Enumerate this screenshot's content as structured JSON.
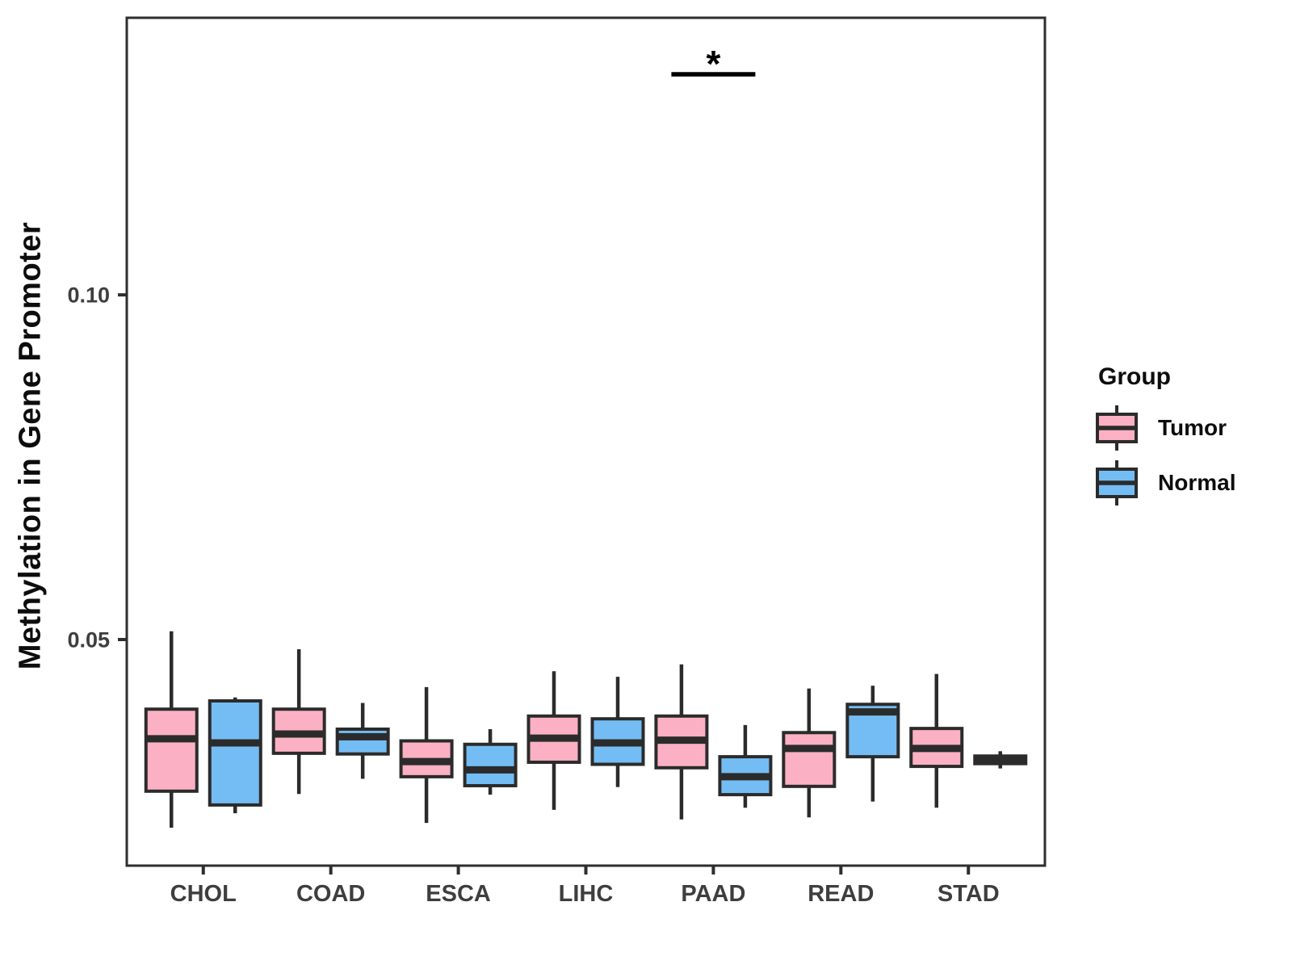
{
  "figure": {
    "y_axis_title": "Methylation in Gene Promoter",
    "legend": {
      "title": "Group",
      "entries": [
        {
          "label": "Tumor",
          "color": "#FBB1C3"
        },
        {
          "label": "Normal",
          "color": "#74BDF4"
        }
      ]
    }
  },
  "chart_data": {
    "type": "boxplot",
    "title": "",
    "xlabel": "",
    "ylabel": "Methylation in Gene Promoter",
    "categories": [
      "CHOL",
      "COAD",
      "ESCA",
      "LIHC",
      "PAAD",
      "READ",
      "STAD"
    ],
    "ylim": [
      0.0172,
      0.1402
    ],
    "y_ticks": [
      0.05,
      0.1
    ],
    "y_tick_labels": [
      "0.05",
      "0.10"
    ],
    "grid": false,
    "legend_position": "right",
    "legend_title": "Group",
    "series": [
      {
        "name": "Tumor",
        "color": "#FBB1C3",
        "boxes": [
          {
            "category": "CHOL",
            "whislo": 0.0227,
            "q1": 0.028,
            "med": 0.0356,
            "q3": 0.0399,
            "whishi": 0.0512
          },
          {
            "category": "COAD",
            "whislo": 0.0276,
            "q1": 0.0335,
            "med": 0.0363,
            "q3": 0.0399,
            "whishi": 0.0486
          },
          {
            "category": "ESCA",
            "whislo": 0.0234,
            "q1": 0.0301,
            "med": 0.0323,
            "q3": 0.0353,
            "whishi": 0.0431
          },
          {
            "category": "LIHC",
            "whislo": 0.0253,
            "q1": 0.0322,
            "med": 0.0357,
            "q3": 0.0389,
            "whishi": 0.0454
          },
          {
            "category": "PAAD",
            "whislo": 0.0239,
            "q1": 0.0314,
            "med": 0.0354,
            "q3": 0.0389,
            "whishi": 0.0464
          },
          {
            "category": "READ",
            "whislo": 0.0242,
            "q1": 0.0287,
            "med": 0.0342,
            "q3": 0.0365,
            "whishi": 0.0429
          },
          {
            "category": "STAD",
            "whislo": 0.0256,
            "q1": 0.0316,
            "med": 0.0342,
            "q3": 0.0371,
            "whishi": 0.045
          }
        ]
      },
      {
        "name": "Normal",
        "color": "#74BDF4",
        "boxes": [
          {
            "category": "CHOL",
            "whislo": 0.0248,
            "q1": 0.026,
            "med": 0.035,
            "q3": 0.0411,
            "whishi": 0.0416
          },
          {
            "category": "COAD",
            "whislo": 0.0298,
            "q1": 0.0334,
            "med": 0.0359,
            "q3": 0.037,
            "whishi": 0.0408
          },
          {
            "category": "ESCA",
            "whislo": 0.0275,
            "q1": 0.0288,
            "med": 0.0311,
            "q3": 0.0348,
            "whishi": 0.037
          },
          {
            "category": "LIHC",
            "whislo": 0.0286,
            "q1": 0.0319,
            "med": 0.035,
            "q3": 0.0385,
            "whishi": 0.0446
          },
          {
            "category": "PAAD",
            "whislo": 0.0256,
            "q1": 0.0275,
            "med": 0.0301,
            "q3": 0.033,
            "whishi": 0.0376
          },
          {
            "category": "READ",
            "whislo": 0.0265,
            "q1": 0.033,
            "med": 0.0395,
            "q3": 0.0406,
            "whishi": 0.0433
          },
          {
            "category": "STAD",
            "whislo": 0.0313,
            "q1": 0.032,
            "med": 0.0326,
            "q3": 0.0331,
            "whishi": 0.0338
          }
        ]
      }
    ],
    "annotations": [
      {
        "type": "significance",
        "category": "PAAD",
        "label": "*",
        "y": 0.132
      }
    ]
  },
  "style": {
    "box_stroke": "#2B2B2B",
    "axis_stroke": "#2E2E2E",
    "tick_label_color": "#3E3E3E",
    "annotation_color": "#000000"
  }
}
